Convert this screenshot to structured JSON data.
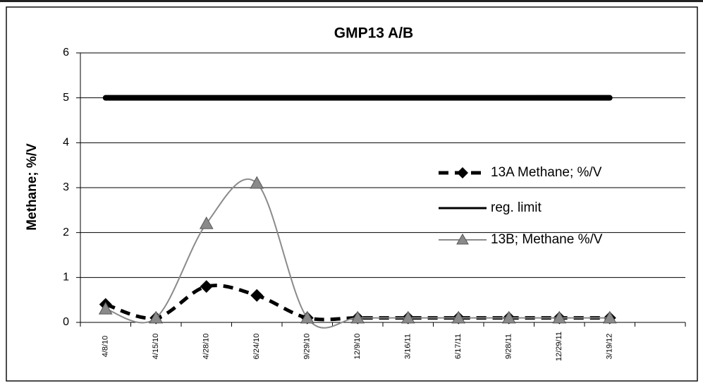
{
  "chart_data": {
    "type": "line",
    "title": "GMP13 A/B",
    "y_label": "Methane; %/V",
    "categories": [
      "4/8/10",
      "4/15/10",
      "4/28/10",
      "6/24/10",
      "9/29/10",
      "12/9/10",
      "3/16/11",
      "6/17/11",
      "9/28/11",
      "12/29/11",
      "3/19/12",
      null
    ],
    "series": [
      {
        "name": "13A Methane; %/V",
        "color": "#000000",
        "style": "dashed",
        "marker": "diamond",
        "values": [
          0.4,
          0.1,
          0.8,
          0.6,
          0.1,
          0.1,
          0.1,
          0.1,
          0.1,
          0.1,
          0.1,
          null
        ]
      },
      {
        "name": "reg. limit",
        "color": "#000000",
        "style": "thick",
        "marker": "none",
        "values": [
          5,
          5,
          5,
          5,
          5,
          5,
          5,
          5,
          5,
          5,
          5,
          null
        ]
      },
      {
        "name": "13B; Methane %/V",
        "color": "#8a8a8a",
        "style": "solid",
        "marker": "triangle",
        "values": [
          0.3,
          0.1,
          2.2,
          3.1,
          0.1,
          0.1,
          0.1,
          0.1,
          0.1,
          0.1,
          0.1,
          null
        ]
      }
    ],
    "ylim": [
      0,
      6
    ],
    "yticks": [
      0,
      1,
      2,
      3,
      4,
      5,
      6
    ],
    "grid": true,
    "legend": "right"
  }
}
